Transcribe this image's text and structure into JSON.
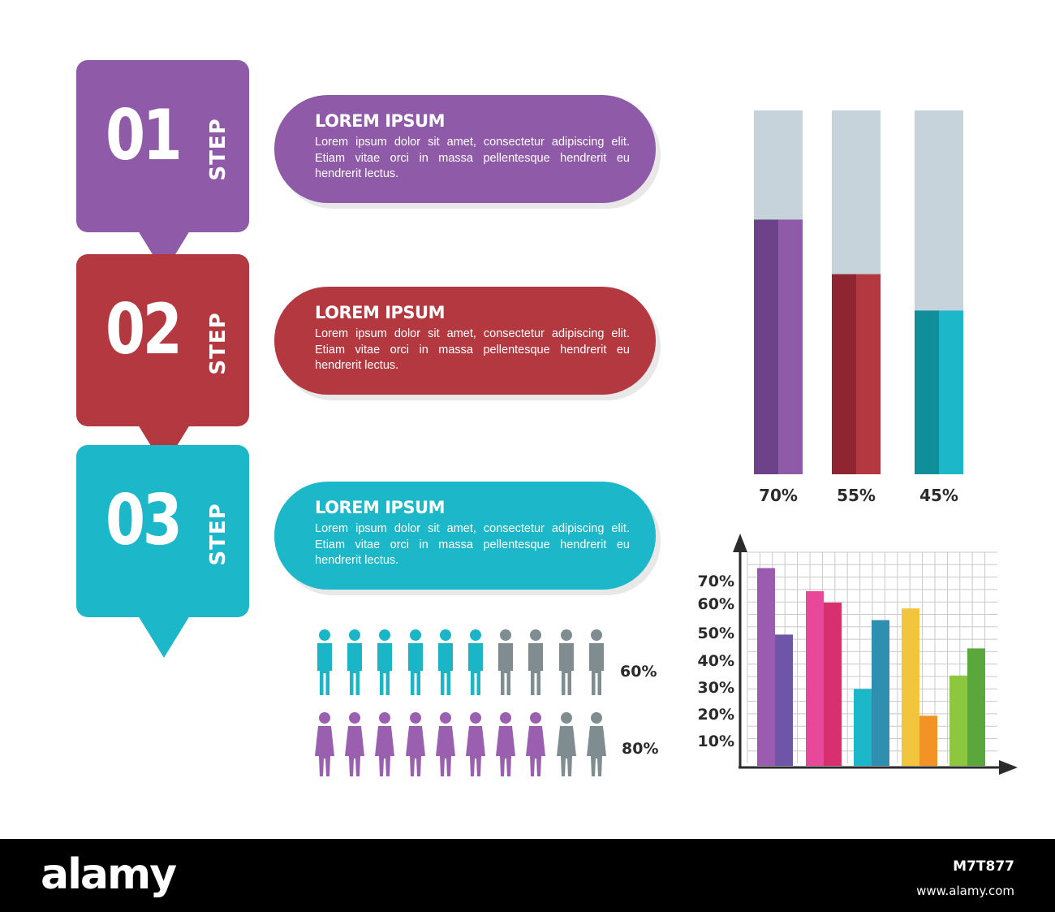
{
  "colors": {
    "purple": "#8f5aa8",
    "purple_dark": "#6e4288",
    "red": "#b43840",
    "red_dark": "#8f2530",
    "teal": "#1cb7c9",
    "teal_dark": "#0e8f9a",
    "track": "#c6d3db",
    "person_teal": "#1ab5c6",
    "person_purple": "#9b5fb0",
    "person_gray": "#7f8c90"
  },
  "steps": [
    {
      "number": "01",
      "word": "STEP",
      "color": "#8f5aa8"
    },
    {
      "number": "02",
      "word": "STEP",
      "color": "#b43840"
    },
    {
      "number": "03",
      "word": "STEP",
      "color": "#1cb7c9"
    }
  ],
  "pills": [
    {
      "title": "LOREM IPSUM",
      "text": "Lorem ipsum dolor sit amet, consectetur adipiscing elit. Etiam vitae orci in massa pellentesque hendrerit eu hendrerit lectus.",
      "color": "#8f5aa8"
    },
    {
      "title": "LOREM IPSUM",
      "text": "Lorem ipsum dolor sit amet, consectetur adipiscing elit. Etiam vitae orci in massa pellentesque hendrerit eu hendrerit lectus.",
      "color": "#b43840"
    },
    {
      "title": "LOREM IPSUM",
      "text": "Lorem ipsum dolor sit amet, consectetur adipiscing elit. Etiam vitae orci in massa pellentesque hendrerit eu hendrerit lectus.",
      "color": "#1cb7c9"
    }
  ],
  "people": [
    {
      "label": "60%",
      "total": 10,
      "filled": 6,
      "color": "#1ab5c6"
    },
    {
      "label": "80%",
      "total": 10,
      "filled": 8,
      "color": "#9b5fb0"
    }
  ],
  "footer": {
    "logo": "alamy",
    "image_id": "M7T877",
    "url": "www.alamy.com"
  },
  "chart_data": [
    {
      "type": "bar",
      "categories": [
        "70%",
        "55%",
        "45%"
      ],
      "values": [
        70,
        55,
        45
      ],
      "ylim": [
        0,
        100
      ],
      "colors": [
        "#8f5aa8",
        "#b43840",
        "#1cb7c9"
      ],
      "grid": false
    },
    {
      "type": "bar",
      "y_tick_labels": [
        "10%",
        "20%",
        "30%",
        "40%",
        "50%",
        "60%",
        "70%"
      ],
      "ylim": [
        0,
        80
      ],
      "grid": true,
      "groups": [
        {
          "values": [
            75,
            49
          ],
          "colors": [
            "#9b5bb0",
            "#6f55a8"
          ]
        },
        {
          "values": [
            65,
            60
          ],
          "colors": [
            "#e8489a",
            "#d8306e"
          ]
        },
        {
          "values": [
            29,
            54
          ],
          "colors": [
            "#1cb7c9",
            "#2e8fb0"
          ]
        },
        {
          "values": [
            58,
            19
          ],
          "colors": [
            "#f2c53d",
            "#f39325"
          ]
        },
        {
          "values": [
            34,
            44
          ],
          "colors": [
            "#8dc63f",
            "#5aa83c"
          ]
        }
      ]
    }
  ]
}
